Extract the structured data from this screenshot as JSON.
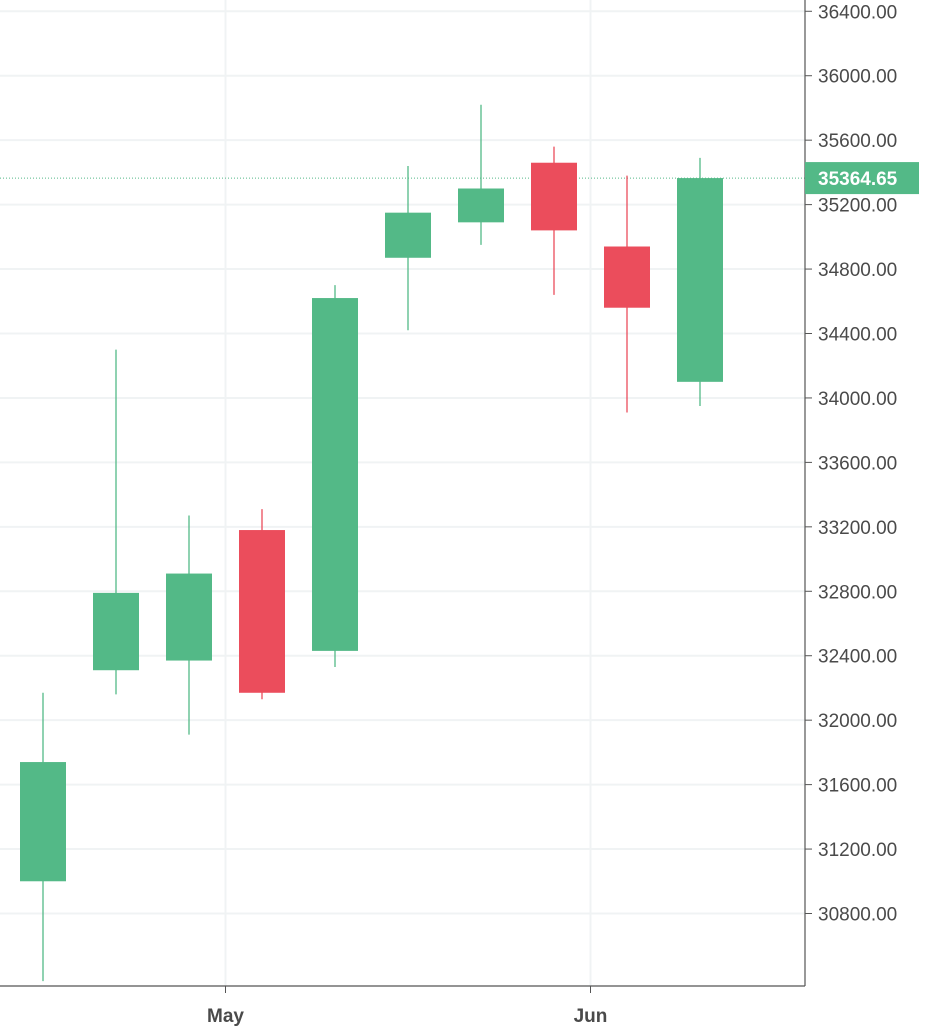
{
  "chart_data": {
    "type": "candlestick",
    "y_axis": {
      "ticks": [
        "36400.00",
        "36000.00",
        "35600.00",
        "35200.00",
        "34800.00",
        "34400.00",
        "34000.00",
        "33600.00",
        "33200.00",
        "32800.00",
        "32400.00",
        "32000.00",
        "31600.00",
        "31200.00",
        "30800.00"
      ],
      "tick_values": [
        36400,
        36000,
        35600,
        35200,
        34800,
        34400,
        34000,
        33600,
        33200,
        32800,
        32400,
        32000,
        31600,
        31200,
        30800
      ],
      "ylim": [
        30350,
        36470
      ],
      "position": "right"
    },
    "x_axis": {
      "labels": [
        {
          "text": "May",
          "after_candle": 2
        },
        {
          "text": "Jun",
          "after_candle": 7
        }
      ]
    },
    "grid": true,
    "colors": {
      "up": "#53b987",
      "down": "#eb4d5c",
      "grid": "#f0f3f4",
      "axis": "#555555",
      "last_price_line": "#53b987"
    },
    "last_price": {
      "value": 35364.65,
      "label": "35364.65"
    },
    "candles": [
      {
        "open": 31000,
        "high": 32170,
        "low": 30380,
        "close": 31740
      },
      {
        "open": 32310,
        "high": 34300,
        "low": 32160,
        "close": 32790
      },
      {
        "open": 32370,
        "high": 33270,
        "low": 31910,
        "close": 32910
      },
      {
        "open": 33180,
        "high": 33310,
        "low": 32130,
        "close": 32170
      },
      {
        "open": 32430,
        "high": 34700,
        "low": 32330,
        "close": 34620
      },
      {
        "open": 34870,
        "high": 35440,
        "low": 34420,
        "close": 35150
      },
      {
        "open": 35090,
        "high": 35820,
        "low": 34950,
        "close": 35300
      },
      {
        "open": 35460,
        "high": 35560,
        "low": 34640,
        "close": 35040
      },
      {
        "open": 34940,
        "high": 35380,
        "low": 33910,
        "close": 34560
      },
      {
        "open": 34100,
        "high": 35490,
        "low": 33950,
        "close": 35364.65
      }
    ]
  }
}
